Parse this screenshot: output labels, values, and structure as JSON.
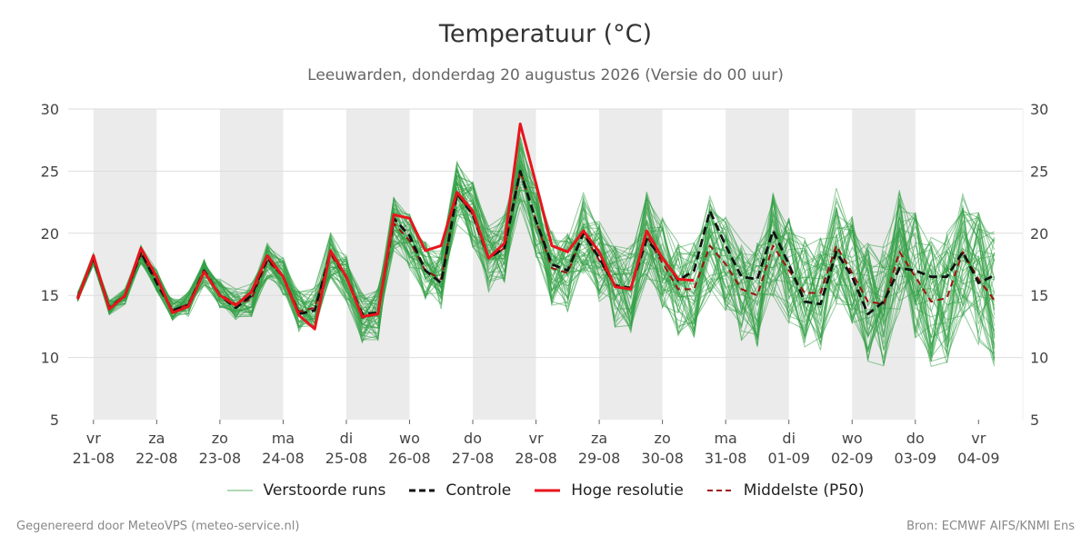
{
  "title": "Temperatuur (°C)",
  "subtitle": "Leeuwarden, donderdag 20 augustus 2026 (Versie do 00 uur)",
  "legend": {
    "perturbed": "Verstoorde runs",
    "control": "Controle",
    "hires": "Hoge resolutie",
    "median": "Middelste (P50)"
  },
  "footer_left": "Gegenereerd door MeteoVPS (meteo-service.nl)",
  "footer_right": "Bron: ECMWF AIFS/KNMI Ens",
  "colors": {
    "perturbed": "#33a046",
    "control": "#111111",
    "hires": "#e8141c",
    "median": "#a01010",
    "weekend_band": "#ebebeb",
    "grid": "#dddddd"
  },
  "chart_data": {
    "type": "line",
    "title": "Temperatuur (°C)",
    "ylim": [
      5,
      30
    ],
    "yticks": [
      5,
      10,
      15,
      20,
      25,
      30
    ],
    "x_unit_days_from": "20-08",
    "xlim": [
      0.6,
      15.7
    ],
    "x_ticks": [
      {
        "day": "vr",
        "date": "21-08"
      },
      {
        "day": "za",
        "date": "22-08"
      },
      {
        "day": "zo",
        "date": "23-08"
      },
      {
        "day": "ma",
        "date": "24-08"
      },
      {
        "day": "di",
        "date": "25-08"
      },
      {
        "day": "wo",
        "date": "26-08"
      },
      {
        "day": "do",
        "date": "27-08"
      },
      {
        "day": "vr",
        "date": "28-08"
      },
      {
        "day": "za",
        "date": "29-08"
      },
      {
        "day": "zo",
        "date": "30-08"
      },
      {
        "day": "ma",
        "date": "31-08"
      },
      {
        "day": "di",
        "date": "01-09"
      },
      {
        "day": "wo",
        "date": "02-09"
      },
      {
        "day": "do",
        "date": "03-09"
      },
      {
        "day": "vr",
        "date": "04-09"
      }
    ],
    "shaded_days": [
      "21-08",
      "23-08",
      "25-08",
      "27-08",
      "29-08",
      "31-08",
      "02-09"
    ],
    "grid": true,
    "legend_position": "bottom",
    "series": [
      {
        "name": "Controle",
        "style": "dashed",
        "values": [
          14.8,
          18.0,
          14.0,
          15.0,
          18.5,
          16.0,
          13.8,
          14.2,
          17.0,
          15.0,
          14.0,
          15.0,
          18.0,
          16.5,
          13.5,
          13.8,
          18.5,
          16.5,
          13.5,
          13.6,
          21.2,
          19.8,
          17.0,
          16.0,
          23.2,
          21.5,
          18.0,
          18.8,
          25.0,
          21.0,
          17.5,
          17.0,
          20.0,
          18.0,
          15.8,
          15.6,
          19.5,
          18.0,
          16.2,
          17.0,
          21.8,
          19.0,
          16.5,
          16.3,
          20.2,
          17.5,
          14.5,
          14.3,
          18.5,
          16.5,
          13.5,
          14.5,
          17.2,
          17.0,
          16.5,
          16.5,
          18.5,
          16.0,
          16.6
        ]
      },
      {
        "name": "Hoge resolutie",
        "style": "solid",
        "values": [
          14.7,
          18.2,
          13.9,
          15.0,
          18.8,
          16.5,
          13.6,
          14.1,
          16.9,
          15.0,
          14.2,
          15.3,
          18.2,
          16.5,
          13.4,
          12.3,
          18.6,
          16.5,
          13.3,
          13.5,
          21.5,
          21.2,
          18.6,
          19.0,
          23.3,
          21.8,
          18.0,
          19.2,
          28.8,
          24.0,
          19.0,
          18.5,
          20.2,
          18.5,
          15.7,
          15.5,
          20.2,
          18.0,
          16.3,
          16.2
        ]
      },
      {
        "name": "Middelste (P50)",
        "style": "dashed",
        "values": [
          14.9,
          17.9,
          14.0,
          14.9,
          18.3,
          16.2,
          13.8,
          14.3,
          16.9,
          15.1,
          14.3,
          14.7,
          17.8,
          16.5,
          13.7,
          14.0,
          18.3,
          16.4,
          13.2,
          13.5,
          20.8,
          19.4,
          17.0,
          16.3,
          23.2,
          21.5,
          18.0,
          18.8,
          25.0,
          21.0,
          17.2,
          16.8,
          20.0,
          17.8,
          15.8,
          15.5,
          19.8,
          17.6,
          15.5,
          15.5,
          19.0,
          17.5,
          15.5,
          15.0,
          19.0,
          17.0,
          15.2,
          15.2,
          19.0,
          16.8,
          14.5,
          14.3,
          18.5,
          16.5,
          14.5,
          14.8,
          18.5,
          16.3,
          14.6
        ]
      }
    ],
    "perturbed_member_count": 50
  }
}
